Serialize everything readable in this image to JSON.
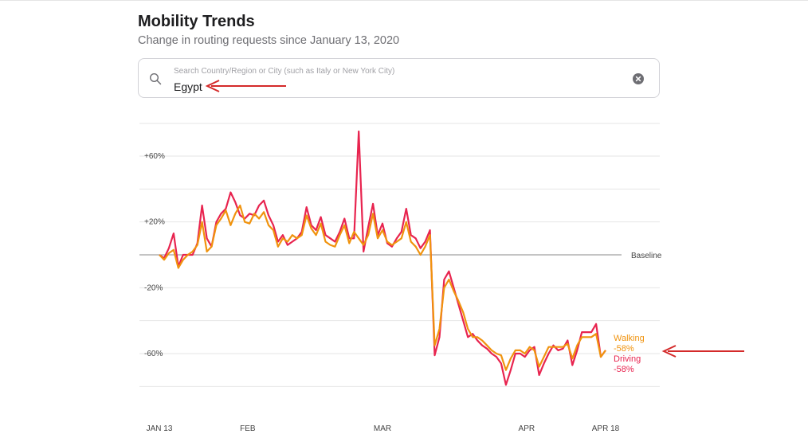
{
  "header": {
    "title": "Mobility Trends",
    "subtitle": "Change in routing requests since January 13, 2020"
  },
  "search": {
    "placeholder": "Search Country/Region or City (such as Italy or New York City)",
    "value": "Egypt"
  },
  "colors": {
    "walking": "#f0930e",
    "driving": "#e8244f",
    "annotation_arrow": "#d42a2a",
    "grid": "#e6e6e6",
    "baseline": "#8a8a8a"
  },
  "chart_data": {
    "type": "line",
    "x_start": "2020-01-13",
    "x_end": "2020-04-18",
    "ylim": [
      -80,
      75
    ],
    "y_ticks": [
      {
        "value": 60,
        "label": "+60%"
      },
      {
        "value": 20,
        "label": "+20%"
      },
      {
        "value": -20,
        "label": "-20%"
      },
      {
        "value": -60,
        "label": "-60%"
      }
    ],
    "gridlines": [
      60,
      40,
      20,
      -20,
      -40,
      -60,
      -80
    ],
    "baseline_label": "Baseline",
    "x_ticks": [
      {
        "date": "2020-01-13",
        "label": "JAN 13"
      },
      {
        "date": "2020-02-01",
        "label": "FEB"
      },
      {
        "date": "2020-03-01",
        "label": "MAR"
      },
      {
        "date": "2020-04-01",
        "label": "APR"
      },
      {
        "date": "2020-04-18",
        "label": "APR 18"
      }
    ],
    "series": [
      {
        "name": "Driving",
        "end_value_label": "-58%",
        "values": [
          0,
          -2,
          4,
          13,
          -7,
          0,
          0,
          0,
          7,
          30,
          10,
          5,
          20,
          25,
          28,
          38,
          32,
          24,
          22,
          25,
          24,
          30,
          33,
          24,
          18,
          8,
          12,
          6,
          8,
          10,
          14,
          29,
          18,
          15,
          23,
          12,
          10,
          8,
          14,
          22,
          10,
          10,
          75,
          2,
          17,
          31,
          12,
          19,
          7,
          5,
          10,
          14,
          28,
          12,
          10,
          4,
          8,
          15,
          -61,
          -50,
          -15,
          -10,
          -20,
          -30,
          -40,
          -50,
          -48,
          -52,
          -55,
          -57,
          -60,
          -62,
          -66,
          -79,
          -70,
          -60,
          -60,
          -62,
          -58,
          -56,
          -73,
          -66,
          -60,
          -55,
          -58,
          -57,
          -52,
          -67,
          -58,
          -47,
          -47,
          -47,
          -42,
          -62,
          -58
        ]
      },
      {
        "name": "Walking",
        "end_value_label": "-58%",
        "values": [
          0,
          -3,
          1,
          3,
          -8,
          -3,
          0,
          2,
          6,
          20,
          2,
          5,
          18,
          22,
          27,
          18,
          25,
          30,
          20,
          19,
          25,
          22,
          26,
          18,
          15,
          5,
          10,
          8,
          12,
          10,
          12,
          24,
          16,
          12,
          19,
          8,
          6,
          5,
          12,
          18,
          7,
          14,
          10,
          6,
          12,
          25,
          10,
          15,
          8,
          6,
          8,
          10,
          20,
          8,
          5,
          0,
          5,
          12,
          -55,
          -45,
          -20,
          -15,
          -22,
          -28,
          -35,
          -45,
          -50,
          -50,
          -52,
          -55,
          -58,
          -60,
          -61,
          -70,
          -63,
          -58,
          -58,
          -60,
          -56,
          -58,
          -68,
          -62,
          -56,
          -56,
          -56,
          -56,
          -54,
          -63,
          -55,
          -50,
          -50,
          -50,
          -48,
          -62,
          -58
        ]
      }
    ]
  }
}
